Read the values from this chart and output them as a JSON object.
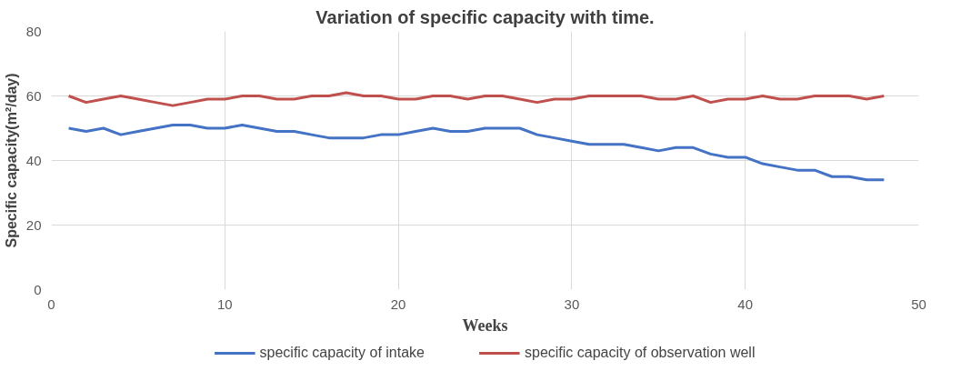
{
  "chart_data": {
    "type": "line",
    "title": "Variation of specific capacity with time.",
    "xlabel": "Weeks",
    "ylabel": "Specific capacity(m²/day)",
    "x": [
      1,
      2,
      3,
      4,
      5,
      6,
      7,
      8,
      9,
      10,
      11,
      12,
      13,
      14,
      15,
      16,
      17,
      18,
      19,
      20,
      21,
      22,
      23,
      24,
      25,
      26,
      27,
      28,
      29,
      30,
      31,
      32,
      33,
      34,
      35,
      36,
      37,
      38,
      39,
      40,
      41,
      42,
      43,
      44,
      45,
      46,
      47,
      48
    ],
    "series": [
      {
        "name": "specific capacity of intake",
        "color": "#4472c4",
        "values": [
          50,
          49,
          50,
          48,
          49,
          50,
          51,
          51,
          50,
          50,
          51,
          50,
          49,
          49,
          48,
          47,
          47,
          47,
          48,
          48,
          49,
          50,
          49,
          49,
          50,
          50,
          50,
          48,
          47,
          46,
          45,
          45,
          45,
          44,
          43,
          44,
          44,
          42,
          41,
          41,
          39,
          38,
          37,
          37,
          35,
          35,
          34,
          34
        ]
      },
      {
        "name": "specific capacity of observation well",
        "color": "#c0504d",
        "values": [
          60,
          58,
          59,
          60,
          59,
          58,
          57,
          58,
          59,
          59,
          60,
          60,
          59,
          59,
          60,
          60,
          61,
          60,
          60,
          59,
          59,
          60,
          60,
          59,
          60,
          60,
          59,
          58,
          59,
          59,
          60,
          60,
          60,
          60,
          59,
          59,
          60,
          58,
          59,
          59,
          60,
          59,
          59,
          60,
          60,
          60,
          59,
          60
        ]
      }
    ],
    "xlim": [
      0,
      50
    ],
    "xticks": [
      0,
      10,
      20,
      30,
      40,
      50
    ],
    "ylim": [
      0,
      80
    ],
    "yticks": [
      0,
      20,
      40,
      60,
      80
    ],
    "grid": true,
    "legend": "bottom",
    "marker": "none",
    "line_style": "solid"
  }
}
